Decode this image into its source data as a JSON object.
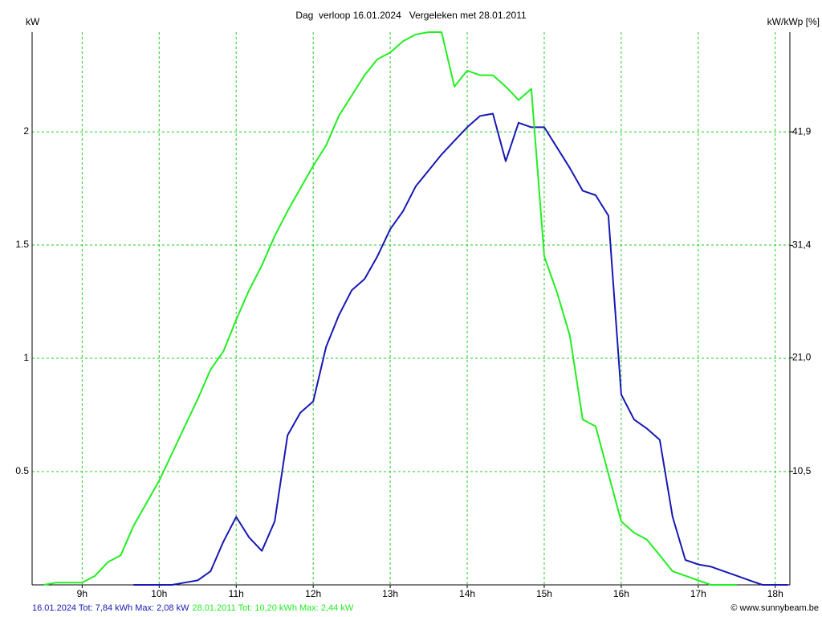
{
  "chart_data": {
    "type": "line",
    "title": "Dag  verloop 16.01.2024   Vergeleken met 28.01.2011",
    "y_label": "kW",
    "y2_label": "kW/kWp [%]",
    "credit": "© www.sunnybeam.be",
    "x": [
      8.5,
      8.667,
      8.833,
      9,
      9.167,
      9.333,
      9.5,
      9.667,
      9.833,
      10,
      10.167,
      10.333,
      10.5,
      10.667,
      10.833,
      11,
      11.167,
      11.333,
      11.5,
      11.667,
      11.833,
      12,
      12.167,
      12.333,
      12.5,
      12.667,
      12.833,
      13,
      13.167,
      13.333,
      13.5,
      13.667,
      13.833,
      14,
      14.167,
      14.333,
      14.5,
      14.667,
      14.833,
      15,
      15.167,
      15.333,
      15.5,
      15.667,
      15.833,
      16,
      16.167,
      16.333,
      16.5,
      16.667,
      16.833,
      17,
      17.167,
      17.333,
      17.5,
      17.667,
      17.833,
      18,
      18.167
    ],
    "series": [
      {
        "name": "16.01.2024 Tot: 7,84 kWh Max: 2,08 kW",
        "color": "#1818b4",
        "values": [
          null,
          null,
          null,
          null,
          null,
          null,
          null,
          0,
          0,
          0,
          0,
          0.01,
          0.02,
          0.06,
          0.19,
          0.3,
          0.21,
          0.15,
          0.28,
          0.66,
          0.76,
          0.81,
          1.05,
          1.19,
          1.3,
          1.35,
          1.45,
          1.57,
          1.65,
          1.76,
          1.83,
          1.9,
          1.96,
          2.02,
          2.07,
          2.08,
          1.87,
          2.04,
          2.02,
          2.02,
          1.93,
          1.84,
          1.74,
          1.72,
          1.63,
          0.84,
          0.73,
          0.69,
          0.64,
          0.3,
          0.11,
          0.09,
          0.08,
          0.06,
          0.04,
          0.02,
          0,
          0,
          0
        ]
      },
      {
        "name": "28.01.2011 Tot: 10,20 kWh Max: 2,44 kW",
        "color": "#22ee22",
        "values": [
          0,
          0.01,
          0.01,
          0.01,
          0.04,
          0.1,
          0.13,
          0.26,
          0.36,
          0.46,
          0.58,
          0.7,
          0.82,
          0.95,
          1.03,
          1.17,
          1.3,
          1.41,
          1.54,
          1.65,
          1.75,
          1.85,
          1.94,
          2.07,
          2.16,
          2.25,
          2.32,
          2.35,
          2.4,
          2.43,
          2.44,
          2.44,
          2.2,
          2.27,
          2.25,
          2.25,
          2.2,
          2.14,
          2.19,
          1.45,
          1.29,
          1.1,
          0.73,
          0.7,
          0.49,
          0.28,
          0.23,
          0.2,
          0.13,
          0.06,
          0.04,
          0.02,
          0,
          0,
          0,
          null,
          null,
          null,
          null
        ]
      }
    ],
    "xlim": [
      8.35,
      18.19
    ],
    "xticks": [
      {
        "value": 9,
        "label": "9h"
      },
      {
        "value": 10,
        "label": "10h"
      },
      {
        "value": 11,
        "label": "11h"
      },
      {
        "value": 12,
        "label": "12h"
      },
      {
        "value": 13,
        "label": "13h"
      },
      {
        "value": 14,
        "label": "14h"
      },
      {
        "value": 15,
        "label": "15h"
      },
      {
        "value": 16,
        "label": "16h"
      },
      {
        "value": 17,
        "label": "17h"
      },
      {
        "value": 18,
        "label": "18h"
      }
    ],
    "ylim": [
      0,
      2.44
    ],
    "yticks": [
      0.5,
      1,
      1.5,
      2
    ],
    "y2lim": [
      0,
      51.12
    ],
    "y2ticks": [
      {
        "value": 10.5,
        "label": "10,5"
      },
      {
        "value": 21.0,
        "label": "21,0"
      },
      {
        "value": 31.4,
        "label": "31,4"
      },
      {
        "value": 41.9,
        "label": "41,9"
      }
    ],
    "grid": true,
    "grid_color": "#22cc22"
  }
}
